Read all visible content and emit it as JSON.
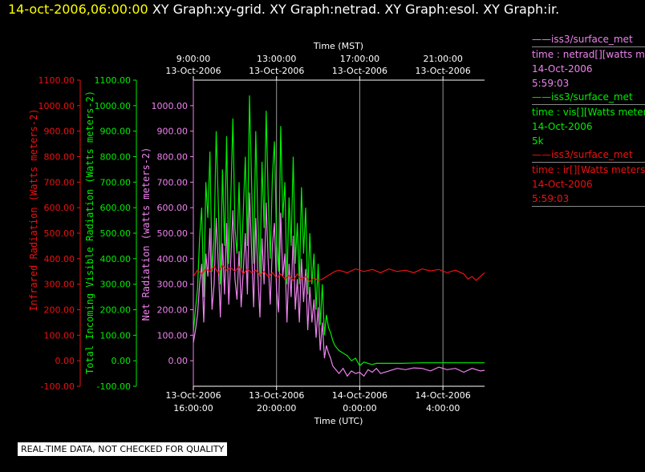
{
  "header": {
    "timestamp": "14-oct-2006,06:00:00",
    "graphs": [
      "XY Graph:xy-grid.",
      "XY Graph:netrad.",
      "XY Graph:esol.",
      "XY Graph:ir."
    ]
  },
  "colors": {
    "netrad": "#ee82ee",
    "vis": "#00ee00",
    "ir": "#ee1111",
    "text": "#ffffff"
  },
  "legend": [
    {
      "line1": "——iss3/surface_met",
      "line2": "time : netrad[][watts me",
      "line3": "14-Oct-2006",
      "line4": "5:59:03",
      "color": "#ee82ee"
    },
    {
      "line1": "——iss3/surface_met",
      "line2": "time : vis[][Watts meter",
      "line3": "14-Oct-2006",
      "line4": "5k",
      "color": "#00ee00"
    },
    {
      "line1": "——iss3/surface_met",
      "line2": "time : ir[][Watts meters",
      "line3": "14-Oct-2006",
      "line4": "5:59:03",
      "color": "#ee1111"
    }
  ],
  "qc_note": "REAL-TIME DATA, NOT CHECKED FOR QUALITY",
  "chart_data": {
    "type": "line",
    "top_axis": {
      "label": "Time (MST)",
      "ticks": [
        {
          "t": 0,
          "line1": "9:00:00",
          "line2": "13-Oct-2006"
        },
        {
          "t": 4,
          "line1": "13:00:00",
          "line2": "13-Oct-2006"
        },
        {
          "t": 8,
          "line1": "17:00:00",
          "line2": "13-Oct-2006"
        },
        {
          "t": 12,
          "line1": "21:00:00",
          "line2": "13-Oct-2006"
        }
      ]
    },
    "bottom_axis": {
      "label": "Time (UTC)",
      "ticks": [
        {
          "t": 0,
          "line1": "13-Oct-2006",
          "line2": "16:00:00"
        },
        {
          "t": 4,
          "line1": "13-Oct-2006",
          "line2": "20:00:00"
        },
        {
          "t": 8,
          "line1": "14-Oct-2006",
          "line2": "0:00:00"
        },
        {
          "t": 12,
          "line1": "14-Oct-2006",
          "line2": "4:00:00"
        }
      ]
    },
    "xlim": [
      0,
      14
    ],
    "y_axes": [
      {
        "label": "Infrared Radiation (Watts meters-2)",
        "color": "#ee1111",
        "ylim": [
          -100,
          1100
        ],
        "ticks": [
          "1100.00",
          "1000.00",
          "900.00",
          "800.00",
          "700.00",
          "600.00",
          "500.00",
          "400.00",
          "300.00",
          "200.00",
          "100.00",
          "0.00",
          "-100.00"
        ]
      },
      {
        "label": "Total Incoming Visible Radiation (Watts meters-2)",
        "color": "#00ee00",
        "ylim": [
          -100,
          1100
        ],
        "ticks": [
          "1100.00",
          "1000.00",
          "900.00",
          "800.00",
          "700.00",
          "600.00",
          "500.00",
          "400.00",
          "300.00",
          "200.00",
          "100.00",
          "0.00",
          "-100.00"
        ]
      },
      {
        "label": "Net Radiation (watts meters-2)",
        "color": "#ee82ee",
        "ylim": [
          -100,
          1100
        ],
        "ticks": [
          "1000.00",
          "900.00",
          "800.00",
          "700.00",
          "600.00",
          "500.00",
          "400.00",
          "300.00",
          "200.00",
          "100.00",
          "0.00"
        ]
      }
    ],
    "series": [
      {
        "name": "iss3/surface_met vis",
        "color": "#00ee00",
        "x": [
          -0.6,
          -0.5,
          -0.4,
          -0.3,
          -0.2,
          -0.1,
          0.0,
          0.1,
          0.2,
          0.3,
          0.4,
          0.5,
          0.6,
          0.7,
          0.8,
          0.9,
          1.0,
          1.1,
          1.2,
          1.3,
          1.4,
          1.5,
          1.6,
          1.7,
          1.8,
          1.9,
          2.0,
          2.1,
          2.2,
          2.3,
          2.4,
          2.5,
          2.6,
          2.7,
          2.8,
          2.9,
          3.0,
          3.1,
          3.2,
          3.3,
          3.4,
          3.5,
          3.6,
          3.7,
          3.8,
          3.9,
          4.0,
          4.1,
          4.2,
          4.3,
          4.4,
          4.5,
          4.6,
          4.7,
          4.8,
          4.9,
          5.0,
          5.1,
          5.2,
          5.3,
          5.4,
          5.5,
          5.6,
          5.7,
          5.8,
          5.9,
          6.0,
          6.1,
          6.2,
          6.3,
          6.4,
          6.5,
          6.6,
          6.7,
          6.8,
          6.9,
          7.0,
          7.2,
          7.4,
          7.6,
          7.8,
          8.0,
          8.2,
          8.4,
          8.6,
          8.8,
          9.0,
          9.2,
          9.5,
          10.0,
          11.0,
          12.0,
          13.0,
          14.0,
          14.4
        ],
        "y": [
          430,
          520,
          610,
          400,
          120,
          80,
          110,
          200,
          280,
          480,
          600,
          250,
          700,
          560,
          820,
          350,
          480,
          900,
          620,
          300,
          750,
          450,
          880,
          380,
          640,
          950,
          520,
          420,
          700,
          360,
          580,
          800,
          450,
          1040,
          700,
          380,
          900,
          560,
          330,
          780,
          520,
          980,
          640,
          400,
          720,
          860,
          480,
          350,
          920,
          560,
          700,
          300,
          640,
          450,
          800,
          380,
          540,
          300,
          680,
          420,
          600,
          260,
          500,
          300,
          420,
          200,
          380,
          140,
          300,
          100,
          180,
          130,
          110,
          80,
          60,
          50,
          40,
          30,
          20,
          0,
          10,
          -20,
          -5,
          -10,
          -15,
          -10,
          -10,
          -10,
          -10,
          -10,
          -8,
          -8,
          -8,
          -8,
          -8
        ]
      },
      {
        "name": "iss3/surface_met netrad",
        "color": "#ee82ee",
        "x": [
          -0.6,
          -0.5,
          -0.4,
          -0.3,
          -0.2,
          -0.1,
          0.0,
          0.1,
          0.2,
          0.3,
          0.4,
          0.5,
          0.6,
          0.7,
          0.8,
          0.9,
          1.0,
          1.1,
          1.2,
          1.3,
          1.4,
          1.5,
          1.6,
          1.7,
          1.8,
          1.9,
          2.0,
          2.1,
          2.2,
          2.3,
          2.4,
          2.5,
          2.6,
          2.7,
          2.8,
          2.9,
          3.0,
          3.1,
          3.2,
          3.3,
          3.4,
          3.5,
          3.6,
          3.7,
          3.8,
          3.9,
          4.0,
          4.1,
          4.2,
          4.3,
          4.4,
          4.5,
          4.6,
          4.7,
          4.8,
          4.9,
          5.0,
          5.1,
          5.2,
          5.3,
          5.4,
          5.5,
          5.6,
          5.7,
          5.8,
          5.9,
          6.0,
          6.1,
          6.2,
          6.3,
          6.4,
          6.5,
          6.6,
          6.7,
          6.8,
          6.9,
          7.0,
          7.2,
          7.4,
          7.6,
          7.8,
          8.0,
          8.2,
          8.4,
          8.6,
          8.8,
          9.0,
          9.4,
          9.8,
          10.2,
          10.6,
          11.0,
          11.4,
          11.8,
          12.2,
          12.6,
          13.0,
          13.4,
          13.8,
          14.2,
          14.4
        ],
        "y": [
          280,
          330,
          380,
          200,
          60,
          40,
          70,
          120,
          180,
          300,
          380,
          150,
          420,
          330,
          520,
          200,
          300,
          560,
          380,
          170,
          460,
          260,
          540,
          220,
          400,
          590,
          320,
          240,
          430,
          210,
          350,
          500,
          260,
          660,
          430,
          210,
          560,
          340,
          170,
          480,
          300,
          620,
          390,
          220,
          450,
          540,
          280,
          190,
          580,
          330,
          420,
          150,
          380,
          250,
          490,
          200,
          320,
          150,
          400,
          230,
          360,
          120,
          290,
          150,
          240,
          90,
          210,
          40,
          150,
          10,
          60,
          30,
          10,
          -20,
          -30,
          -40,
          -50,
          -30,
          -60,
          -40,
          -50,
          -45,
          -60,
          -35,
          -45,
          -30,
          -50,
          -40,
          -30,
          -35,
          -28,
          -30,
          -40,
          -25,
          -35,
          -30,
          -45,
          -30,
          -40,
          -35,
          -45
        ]
      },
      {
        "name": "iss3/surface_met ir",
        "color": "#ee1111",
        "x": [
          -0.6,
          -0.4,
          -0.2,
          0.0,
          0.2,
          0.4,
          0.6,
          0.8,
          1.0,
          1.2,
          1.4,
          1.6,
          1.8,
          2.0,
          2.2,
          2.4,
          2.6,
          2.8,
          3.0,
          3.2,
          3.4,
          3.6,
          3.8,
          4.0,
          4.2,
          4.4,
          4.6,
          4.8,
          5.0,
          5.2,
          5.4,
          5.6,
          5.8,
          6.0,
          6.2,
          6.4,
          6.6,
          6.8,
          7.0,
          7.4,
          7.8,
          8.2,
          8.6,
          9.0,
          9.4,
          9.8,
          10.2,
          10.6,
          11.0,
          11.4,
          11.8,
          12.2,
          12.6,
          13.0,
          13.2,
          13.4,
          13.6,
          13.8,
          14.0,
          14.2,
          14.4
        ],
        "y": [
          290,
          320,
          345,
          330,
          355,
          340,
          360,
          350,
          370,
          345,
          375,
          355,
          365,
          350,
          370,
          340,
          360,
          345,
          355,
          335,
          350,
          330,
          345,
          325,
          340,
          320,
          335,
          315,
          340,
          320,
          330,
          310,
          325,
          315,
          320,
          330,
          340,
          350,
          355,
          345,
          360,
          350,
          358,
          345,
          360,
          350,
          355,
          345,
          360,
          352,
          358,
          345,
          355,
          340,
          320,
          330,
          315,
          330,
          345,
          350,
          335
        ]
      }
    ]
  }
}
